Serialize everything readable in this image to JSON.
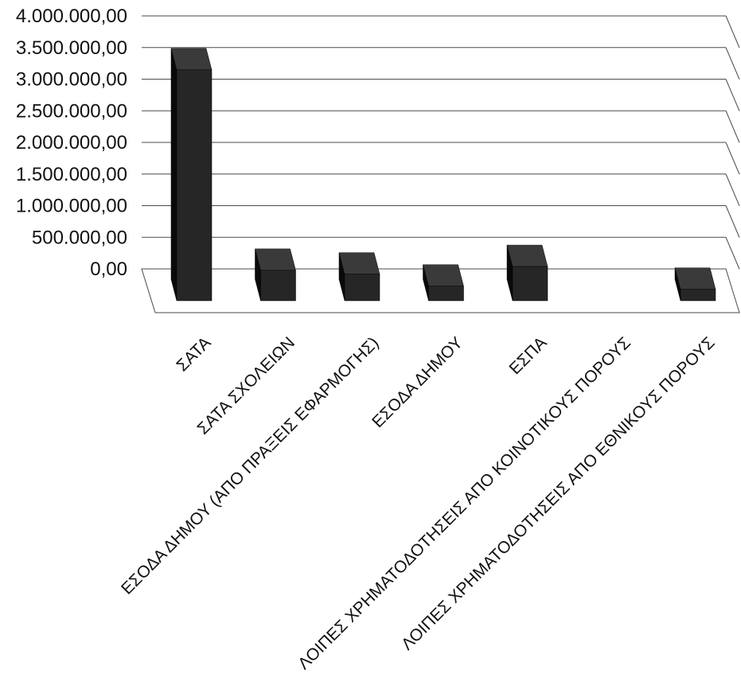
{
  "chart_data": {
    "type": "bar",
    "style": "3d-column",
    "categories": [
      "ΣΑΤΑ",
      "ΣΑΤΑ ΣΧΟΛΕΙΩΝ",
      "ΕΣΟΔΑ ΔΗΜΟΥ (ΑΠΟ ΠΡΑΞΕΙΣ ΕΦΑΡΜΟΓΗΣ)",
      "ΕΣΟΔΑ ΔΗΜΟΥ",
      "ΕΣΠΑ",
      "ΛΟΙΠΕΣ ΧΡΗΜΑΤΟΔΟΤΗΣΕΙΣ ΑΠΟ ΚΟΙΝΟΤΙΚΟΥΣ ΠΟΡΟΥΣ",
      "ΛΟΙΠΕΣ ΧΡΗΜΑΤΟΔΟΤΗΣΕΙΣ ΑΠΟ ΕΘΝΙΚΟΥΣ ΠΟΡΟΥΣ"
    ],
    "values": [
      3650000,
      480000,
      420000,
      230000,
      540000,
      0,
      180000
    ],
    "ylim": [
      0,
      4000000
    ],
    "yticks": [
      0,
      500000,
      1000000,
      1500000,
      2000000,
      2500000,
      3000000,
      3500000,
      4000000
    ],
    "ytick_labels": [
      "0,00",
      "500.000,00",
      "1.000.000,00",
      "1.500.000,00",
      "2.000.000,00",
      "2.500.000,00",
      "3.000.000,00",
      "3.500.000,00",
      "4.000.000,00"
    ],
    "grid": true,
    "legend": "none",
    "colors": {
      "bar": "#262626",
      "bar_top": "#3a3a3a",
      "bar_side": "#0a0a0a",
      "grid": "#4a4a4a",
      "text": "#111111",
      "background": "#ffffff"
    }
  }
}
